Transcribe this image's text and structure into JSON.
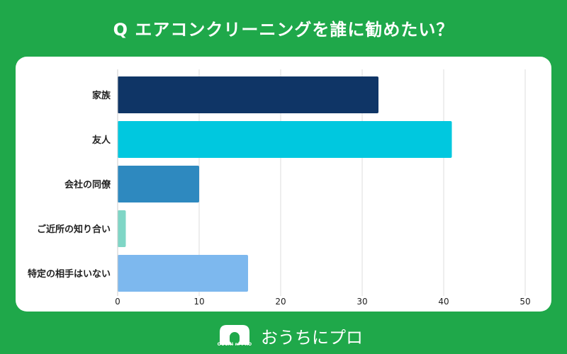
{
  "title": "Q エアコンクリーニングを誰に勧めたい？",
  "brand": {
    "name": "おうちにプロ",
    "logo_mark_text": "OUCHI ni PRO"
  },
  "colors": {
    "background": "#1fa84a",
    "card": "#ffffff",
    "grid": "#dddddd"
  },
  "chart_data": {
    "type": "bar",
    "orientation": "horizontal",
    "categories": [
      "家族",
      "友人",
      "会社の同僚",
      "ご近所の知り合い",
      "特定の相手はいない"
    ],
    "values": [
      32,
      41,
      10,
      1,
      16
    ],
    "bar_colors": [
      "#0f3566",
      "#00c8df",
      "#2e89bf",
      "#7fd6c6",
      "#7db8ee"
    ],
    "xlim": [
      0,
      50
    ],
    "xticks": [
      "0",
      "10",
      "20",
      "30",
      "40",
      "50"
    ],
    "xtick_values": [
      0,
      10,
      20,
      30,
      40,
      50
    ],
    "title": "Q エアコンクリーニングを誰に勧めたい？",
    "xlabel": "",
    "ylabel": "",
    "grid": true
  }
}
